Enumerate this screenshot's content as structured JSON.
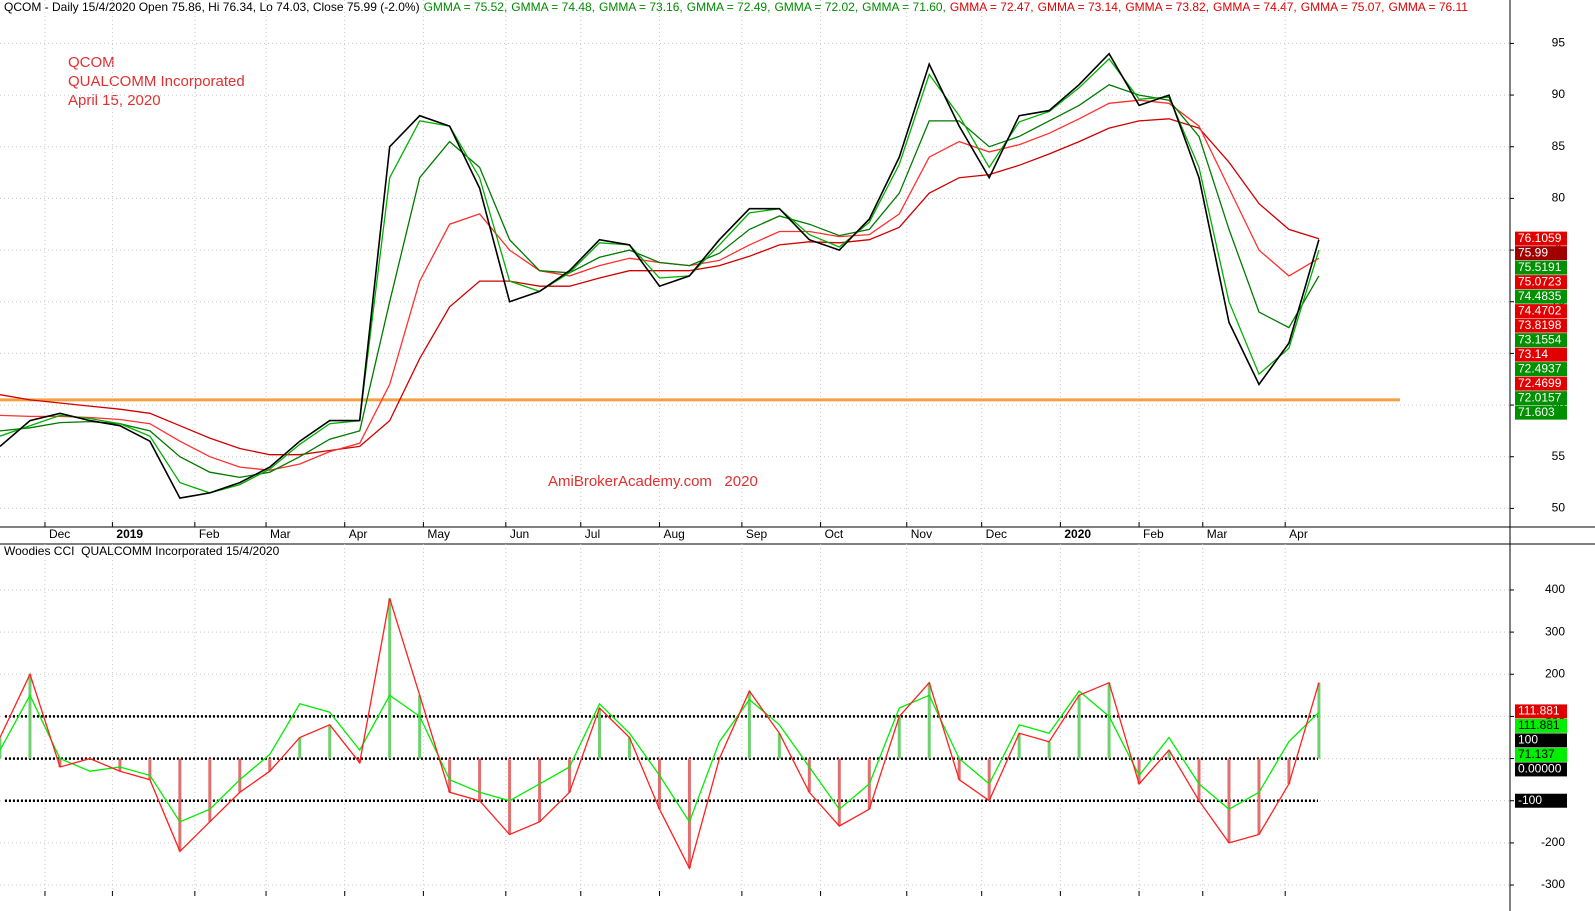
{
  "chart_data": [
    {
      "type": "line",
      "header": [
        {
          "text": "QCOM - Daily 15/4/2020 Open 75.86, Hi 76.34, Lo 74.03, Close 75.99 (-2.0%)",
          "color": "#000000"
        },
        {
          "text": "GMMA = 75.52,",
          "color": "#008a00"
        },
        {
          "text": "GMMA = 74.48,",
          "color": "#008a00"
        },
        {
          "text": "GMMA = 73.16,",
          "color": "#008a00"
        },
        {
          "text": "GMMA = 72.49,",
          "color": "#008a00"
        },
        {
          "text": "GMMA = 72.02,",
          "color": "#008a00"
        },
        {
          "text": "GMMA = 71.60,",
          "color": "#008a00"
        },
        {
          "text": "GMMA = 72.47,",
          "color": "#e00000"
        },
        {
          "text": "GMMA = 73.14,",
          "color": "#e00000"
        },
        {
          "text": "GMMA = 73.82,",
          "color": "#e00000"
        },
        {
          "text": "GMMA = 74.47,",
          "color": "#e00000"
        },
        {
          "text": "GMMA = 75.07,",
          "color": "#e00000"
        },
        {
          "text": "GMMA = 76.11",
          "color": "#e00000"
        }
      ],
      "annotations": [
        "QCOM",
        "QUALCOMM Incorporated",
        "April 15, 2020"
      ],
      "watermark": "AmiBrokerAcademy.com   2020",
      "x": [
        0,
        8,
        16,
        24,
        32,
        40,
        48,
        56,
        64,
        72,
        80,
        88,
        96,
        104,
        112,
        120,
        128,
        136,
        144,
        152,
        160,
        168,
        176,
        184,
        192,
        200,
        208,
        216,
        224,
        232,
        240,
        248,
        256,
        264,
        272,
        280,
        288,
        296,
        304,
        312,
        320,
        328,
        336,
        344,
        352
      ],
      "xlim": [
        0,
        403
      ],
      "xticks": [
        {
          "value": 12,
          "label": "Dec"
        },
        {
          "value": 30,
          "label": "2019",
          "bold": true
        },
        {
          "value": 52,
          "label": "Feb"
        },
        {
          "value": 71,
          "label": "Mar"
        },
        {
          "value": 92,
          "label": "Apr"
        },
        {
          "value": 113,
          "label": "May"
        },
        {
          "value": 135,
          "label": "Jun"
        },
        {
          "value": 155,
          "label": "Jul"
        },
        {
          "value": 176,
          "label": "Aug"
        },
        {
          "value": 198,
          "label": "Sep"
        },
        {
          "value": 219,
          "label": "Oct"
        },
        {
          "value": 242,
          "label": "Nov"
        },
        {
          "value": 262,
          "label": "Dec"
        },
        {
          "value": 283,
          "label": "2020",
          "bold": true
        },
        {
          "value": 304,
          "label": "Feb"
        },
        {
          "value": 321,
          "label": "Mar"
        },
        {
          "value": 343,
          "label": "Apr"
        }
      ],
      "ylim": [
        48.2,
        99.2
      ],
      "yticks": [
        50,
        55,
        60,
        65,
        70,
        75,
        80,
        85,
        90,
        95
      ],
      "grid": true,
      "series": [
        {
          "color": "#000000",
          "values": [
            56,
            58.5,
            59.2,
            58.5,
            58,
            56.5,
            51,
            51.5,
            52.5,
            54,
            56.5,
            58.5,
            58.5,
            85,
            88,
            87,
            81,
            70,
            71,
            73,
            76,
            75.5,
            71.5,
            72.5,
            76,
            79,
            79,
            76,
            75,
            78,
            84,
            93,
            87,
            82,
            88,
            88.5,
            91,
            94,
            89,
            90,
            82,
            68,
            62,
            66,
            76
          ]
        },
        {
          "color": "#00b000",
          "values": [
            57,
            58,
            59,
            58.7,
            58.2,
            57,
            52.5,
            51.5,
            52.3,
            53.8,
            56.2,
            58.2,
            58.5,
            82,
            87.5,
            87,
            82,
            72,
            71,
            72.8,
            75.7,
            75.5,
            72.3,
            72.5,
            75.5,
            78.6,
            79,
            76.5,
            75.3,
            77.7,
            83.3,
            92,
            88,
            83,
            87.4,
            88.4,
            90.7,
            93.5,
            89.6,
            89.8,
            83,
            70,
            63,
            65.5,
            75
          ]
        },
        {
          "color": "#007a00",
          "values": [
            57.5,
            57.8,
            58.3,
            58.4,
            58.2,
            57.5,
            55,
            53.5,
            53,
            53.5,
            55,
            56.7,
            57.5,
            70,
            82,
            85.5,
            83,
            76,
            73,
            72.8,
            74.3,
            75,
            73.8,
            73.5,
            74.7,
            77,
            78.3,
            77.5,
            76.4,
            77,
            80.5,
            87.5,
            87.5,
            85,
            86,
            87.5,
            89,
            91,
            90,
            89.5,
            86,
            77,
            69,
            67.5,
            72.5
          ]
        },
        {
          "color": "#ff3030",
          "values": [
            59,
            58.9,
            58.9,
            58.8,
            58.6,
            58.2,
            56.5,
            55,
            54,
            53.7,
            54.3,
            55.5,
            56.3,
            62,
            72,
            77.5,
            78.5,
            75,
            73,
            72.5,
            73.5,
            74.2,
            73.8,
            73.5,
            74,
            75.5,
            76.8,
            76.8,
            76.3,
            76.5,
            78.5,
            84,
            85.5,
            84.5,
            85.2,
            86.3,
            87.7,
            89.2,
            89.5,
            89.2,
            87,
            81,
            75,
            72.5,
            74.2
          ]
        },
        {
          "color": "#d00000",
          "values": [
            61,
            60.5,
            60.2,
            59.9,
            59.6,
            59.2,
            58,
            56.8,
            55.8,
            55.2,
            55.2,
            55.6,
            56,
            58.5,
            64.5,
            69.5,
            72,
            72,
            71.5,
            71.5,
            72.3,
            73,
            73,
            73,
            73.5,
            74.4,
            75.5,
            75.8,
            75.7,
            76,
            77.2,
            80.5,
            82,
            82.3,
            83.2,
            84.3,
            85.5,
            86.8,
            87.5,
            87.7,
            86.8,
            83.5,
            79.5,
            77,
            76.1
          ]
        }
      ],
      "hline": {
        "value": 60.5,
        "color": "#f5a040"
      },
      "value_tags": [
        {
          "value": 76.1059,
          "color": "#e00000",
          "text_color": "#ffffff"
        },
        {
          "value": 75.99,
          "color": "#a00000",
          "text_color": "#ffffff"
        },
        {
          "value": 75.5191,
          "color": "#009000",
          "text_color": "#ffffff"
        },
        {
          "value": 75.0723,
          "color": "#e00000",
          "text_color": "#ffffff"
        },
        {
          "value": 74.4835,
          "color": "#009000",
          "text_color": "#ffffff"
        },
        {
          "value": 74.4702,
          "color": "#e00000",
          "text_color": "#ffffff"
        },
        {
          "value": 73.8198,
          "color": "#e00000",
          "text_color": "#ffffff"
        },
        {
          "value": 73.1554,
          "color": "#009000",
          "text_color": "#ffffff"
        },
        {
          "value": 73.14,
          "color": "#e00000",
          "text_color": "#ffffff"
        },
        {
          "value": 72.4937,
          "color": "#009000",
          "text_color": "#ffffff"
        },
        {
          "value": 72.4699,
          "color": "#e00000",
          "text_color": "#ffffff"
        },
        {
          "value": 72.0157,
          "color": "#009000",
          "text_color": "#ffffff"
        },
        {
          "value": 71.603,
          "color": "#009000",
          "text_color": "#ffffff"
        }
      ]
    },
    {
      "type": "line",
      "title": "Woodies CCI  QUALCOMM Incorporated 15/4/2020",
      "x": [
        0,
        8,
        16,
        24,
        32,
        40,
        48,
        56,
        64,
        72,
        80,
        88,
        96,
        104,
        112,
        120,
        128,
        136,
        144,
        152,
        160,
        168,
        176,
        184,
        192,
        200,
        208,
        216,
        224,
        232,
        240,
        248,
        256,
        264,
        272,
        280,
        288,
        296,
        304,
        312,
        320,
        328,
        336,
        344,
        352
      ],
      "xlim": [
        0,
        403
      ],
      "xticks": [
        12,
        30,
        52,
        71,
        92,
        113,
        135,
        155,
        176,
        198,
        219,
        242,
        262,
        283,
        304,
        321,
        343
      ],
      "ylim": [
        -326,
        509
      ],
      "yticks": [
        -300,
        -200,
        -100,
        0,
        100,
        200,
        300,
        400
      ],
      "grid": true,
      "histogram": true,
      "series": [
        {
          "color": "#ff2020",
          "values": [
            50,
            200,
            -20,
            0,
            -30,
            -50,
            -220,
            -150,
            -80,
            -30,
            50,
            80,
            -10,
            380,
            150,
            -80,
            -100,
            -180,
            -150,
            -80,
            120,
            50,
            -120,
            -260,
            0,
            160,
            60,
            -80,
            -160,
            -120,
            100,
            180,
            -50,
            -100,
            60,
            40,
            150,
            180,
            -60,
            20,
            -100,
            -200,
            -180,
            -60,
            180
          ]
        },
        {
          "color": "#00ee00",
          "values": [
            20,
            150,
            0,
            -30,
            -20,
            -40,
            -150,
            -120,
            -50,
            10,
            130,
            110,
            20,
            150,
            100,
            -50,
            -80,
            -100,
            -60,
            -20,
            130,
            60,
            -40,
            -150,
            40,
            140,
            80,
            -20,
            -120,
            -60,
            120,
            150,
            0,
            -60,
            80,
            60,
            160,
            100,
            -40,
            50,
            -60,
            -120,
            -80,
            40,
            110
          ]
        }
      ],
      "hlines": [
        100,
        0,
        -100
      ],
      "value_tags": [
        {
          "value": 111.881,
          "color": "#e00000",
          "text_color": "#ffffff"
        },
        {
          "value": 111.881,
          "color": "#00ee00",
          "text_color": "#000000"
        },
        {
          "value": 100,
          "color": "#000000",
          "text_color": "#ffffff"
        },
        {
          "value": 71.137,
          "color": "#00ee00",
          "text_color": "#000000"
        },
        {
          "value": 0,
          "label": "0.00000",
          "color": "#000000",
          "text_color": "#ffffff"
        },
        {
          "value": -100,
          "color": "#000000",
          "text_color": "#ffffff"
        }
      ]
    }
  ]
}
